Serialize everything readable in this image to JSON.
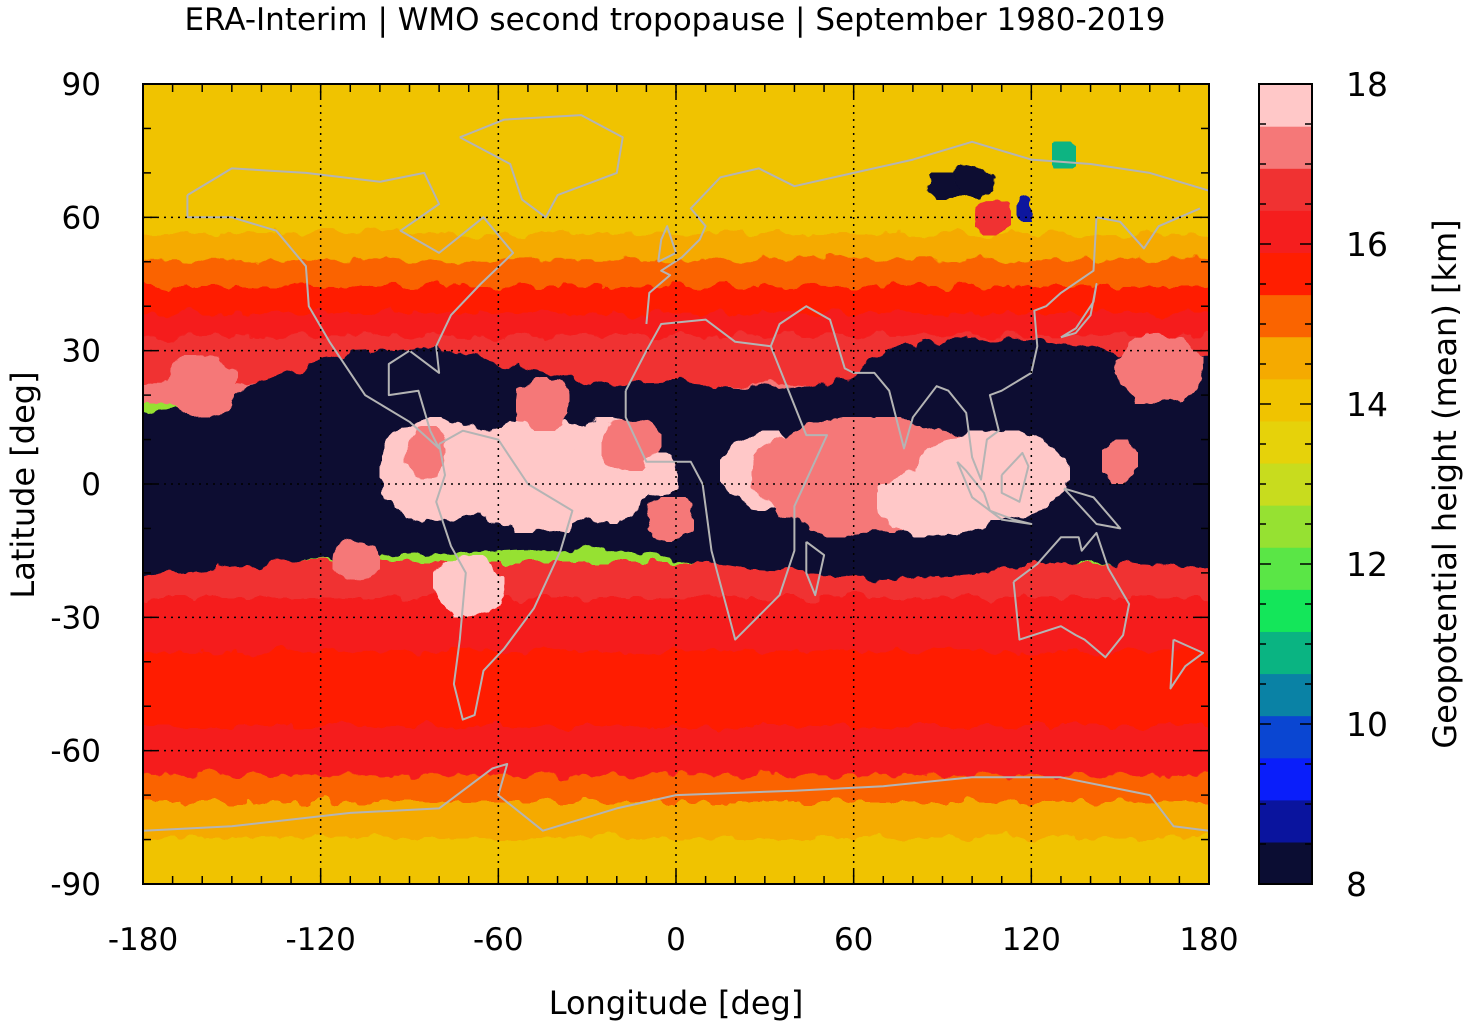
{
  "chart_data": {
    "type": "heatmap",
    "title": "ERA-Interim | WMO second tropopause | September 1980-2019",
    "xlabel": "Longitude [deg]",
    "ylabel": "Latitude [deg]",
    "xlim": [
      -180,
      180
    ],
    "ylim": [
      -90,
      90
    ],
    "x_ticks": [
      "-180",
      "-120",
      "-60",
      "0",
      "60",
      "120",
      "180"
    ],
    "y_ticks": [
      "90",
      "60",
      "30",
      "0",
      "-30",
      "-60",
      "-90"
    ],
    "grid": true,
    "colorbar": {
      "label": "Geopotential height (mean) [km]",
      "range": [
        8,
        18
      ],
      "ticks": [
        "18",
        "16",
        "14",
        "12",
        "10",
        "8"
      ],
      "colors": [
        "#0b0d33",
        "#0a149e",
        "#0a1efa",
        "#0a46d2",
        "#0a82a5",
        "#0ab482",
        "#14e65a",
        "#5ae646",
        "#96e132",
        "#c8dc1e",
        "#e6d20a",
        "#f0c300",
        "#f5aa00",
        "#fa6400",
        "#ff1e00",
        "#f51e1e",
        "#f03232",
        "#f57878",
        "#ffc8c8"
      ]
    },
    "zonal_mean_profile": {
      "latitude": [
        90,
        82,
        75,
        68,
        62,
        56,
        50,
        44,
        38,
        33,
        28,
        22,
        18,
        15,
        5,
        0,
        -5,
        -15,
        -18,
        -21,
        -26,
        -32,
        -38,
        -44,
        -50,
        -55,
        -60,
        -66,
        -72,
        -80,
        -90
      ],
      "height_km": [
        13.9,
        14.4,
        14.1,
        13.9,
        14.0,
        14.5,
        15.0,
        15.4,
        15.8,
        16.3,
        16.6,
        17.2,
        17.0,
        8.0,
        8.0,
        8.0,
        8.0,
        8.0,
        17.0,
        16.8,
        16.5,
        16.2,
        15.8,
        15.4,
        15.6,
        16.0,
        16.2,
        15.7,
        14.8,
        14.0,
        13.8
      ]
    }
  }
}
